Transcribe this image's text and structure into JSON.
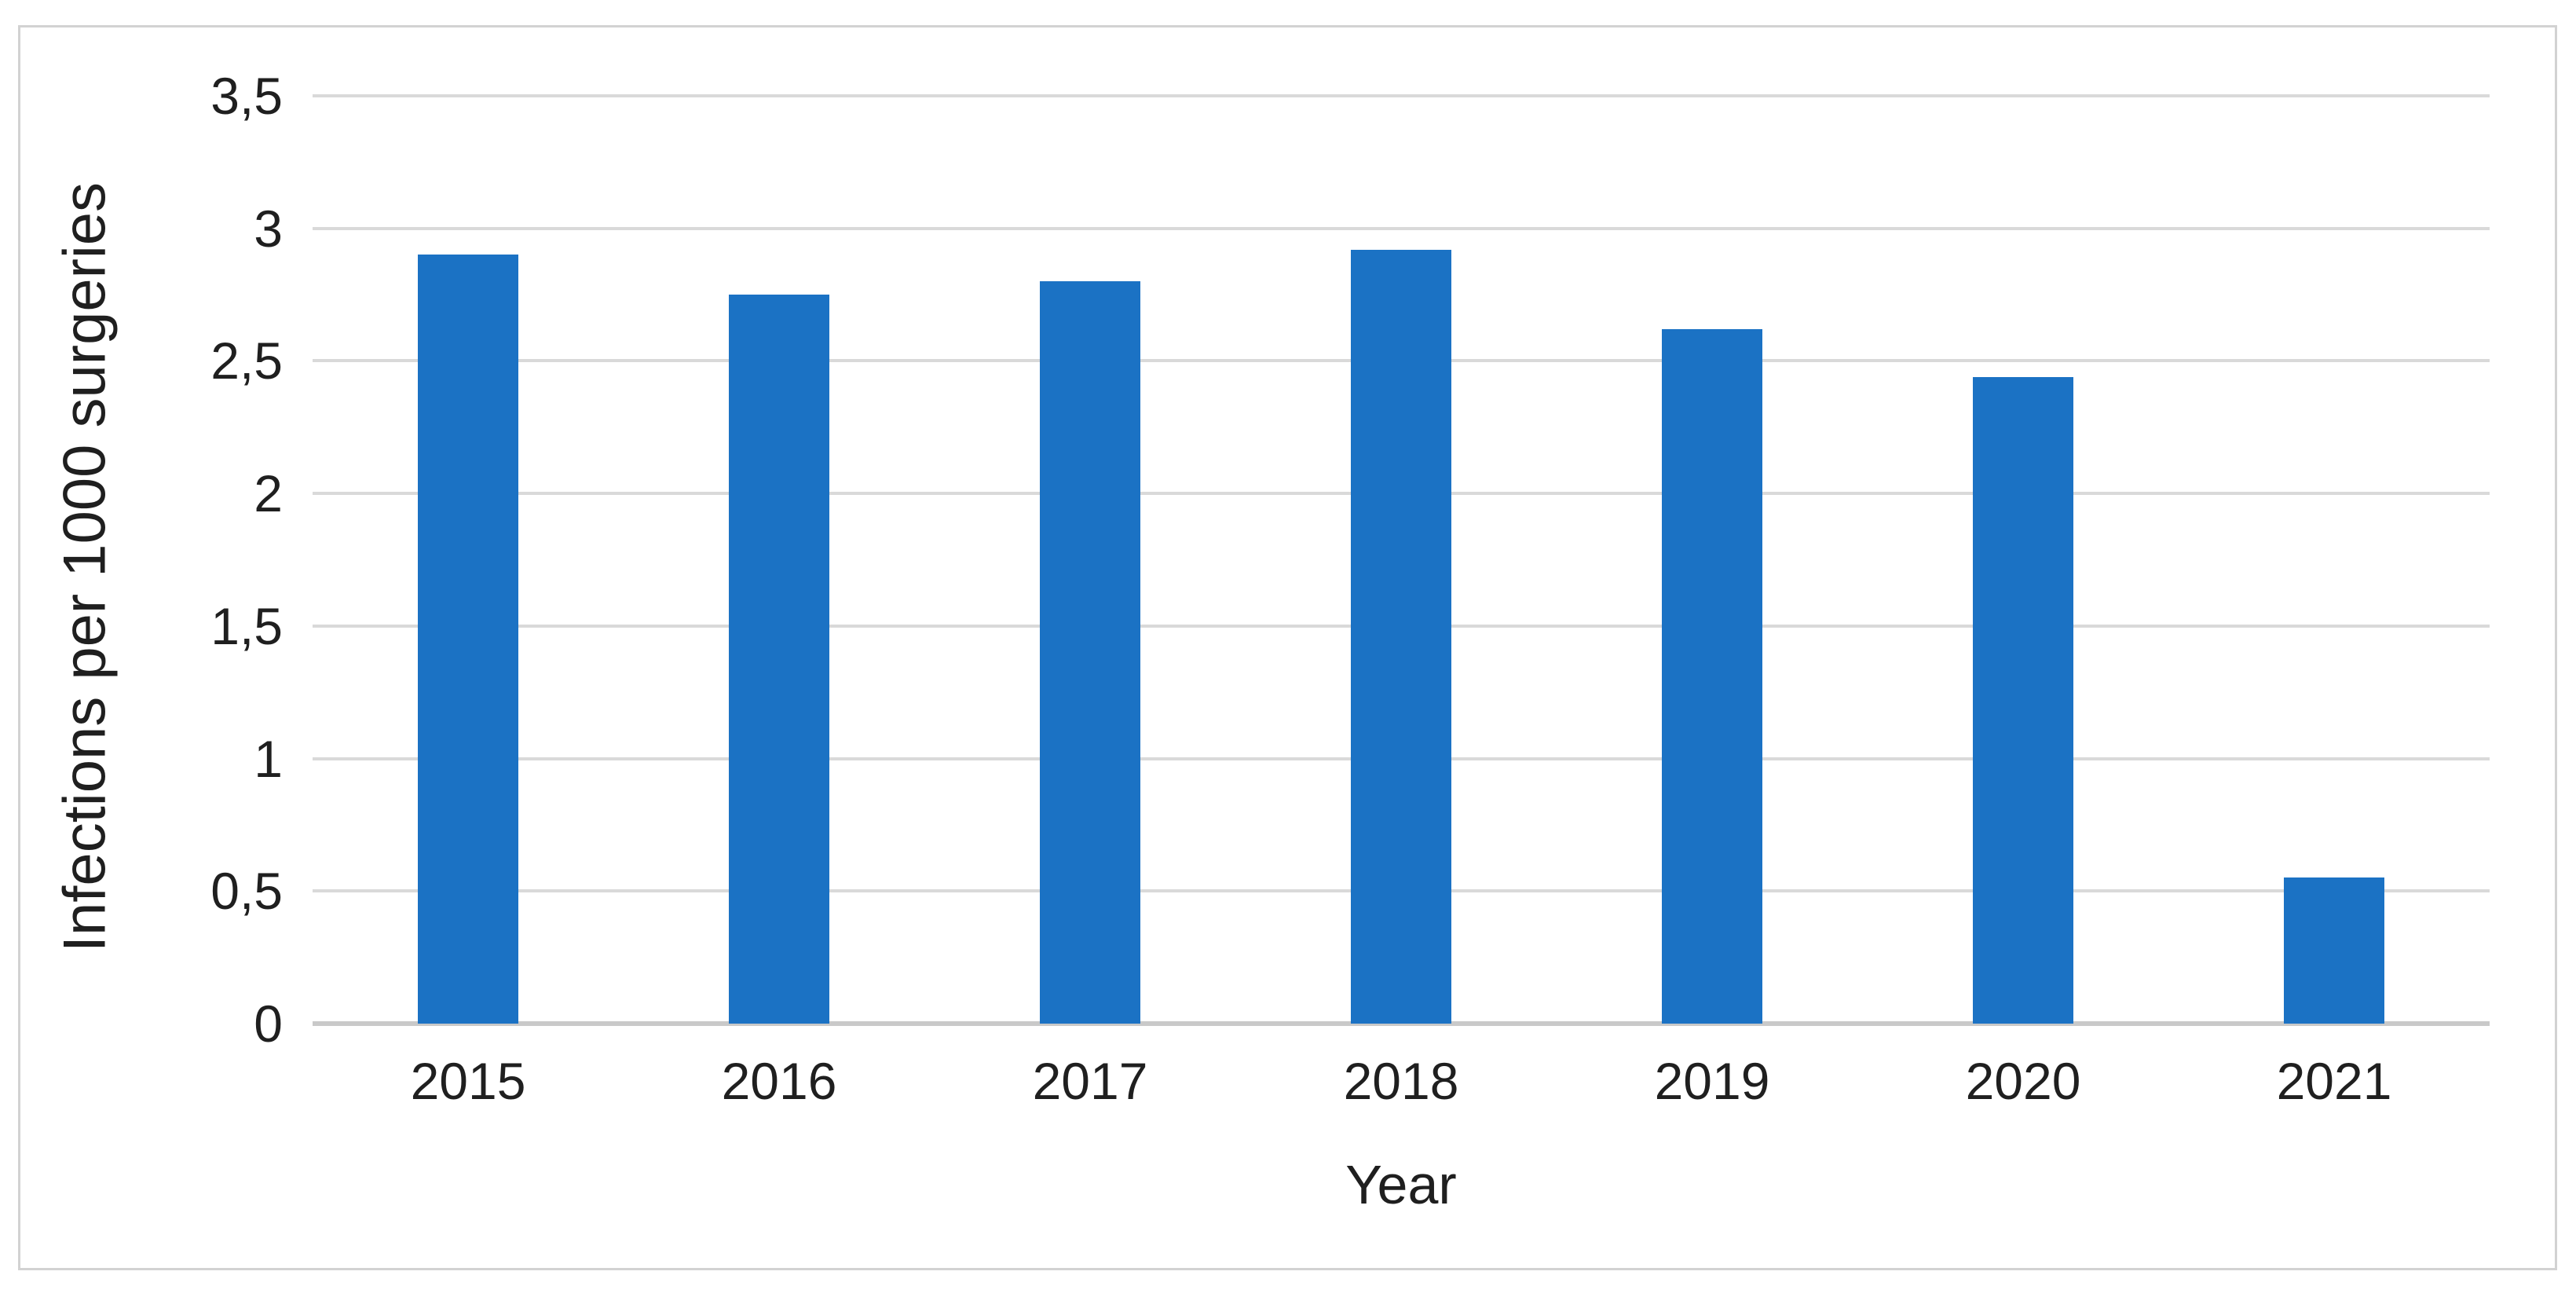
{
  "chart_data": {
    "type": "bar",
    "title": "",
    "ylabel": "Infections per 1000 surgeries",
    "xlabel": "Year",
    "categories": [
      "2015",
      "2016",
      "2017",
      "2018",
      "2019",
      "2020",
      "2021"
    ],
    "values": [
      2.9,
      2.75,
      2.8,
      2.92,
      2.62,
      2.44,
      0.55
    ],
    "ylim": [
      0,
      3.5
    ],
    "ytick_values": [
      0,
      0.5,
      1,
      1.5,
      2,
      2.5,
      3,
      3.5
    ],
    "ytick_labels": [
      "0",
      "0,5",
      "1",
      "1,5",
      "2",
      "2,5",
      "3",
      "3,5"
    ],
    "decimal_separator": ",",
    "grid": true,
    "legend": false,
    "bar_color": "#1b72c4",
    "gridline_color": "#d9d9d9",
    "axis_line_color": "#c9c9c9",
    "text_color": "#1f1f1f",
    "figure_border_color": "#d2d2d2",
    "background_color": "#ffffff"
  }
}
